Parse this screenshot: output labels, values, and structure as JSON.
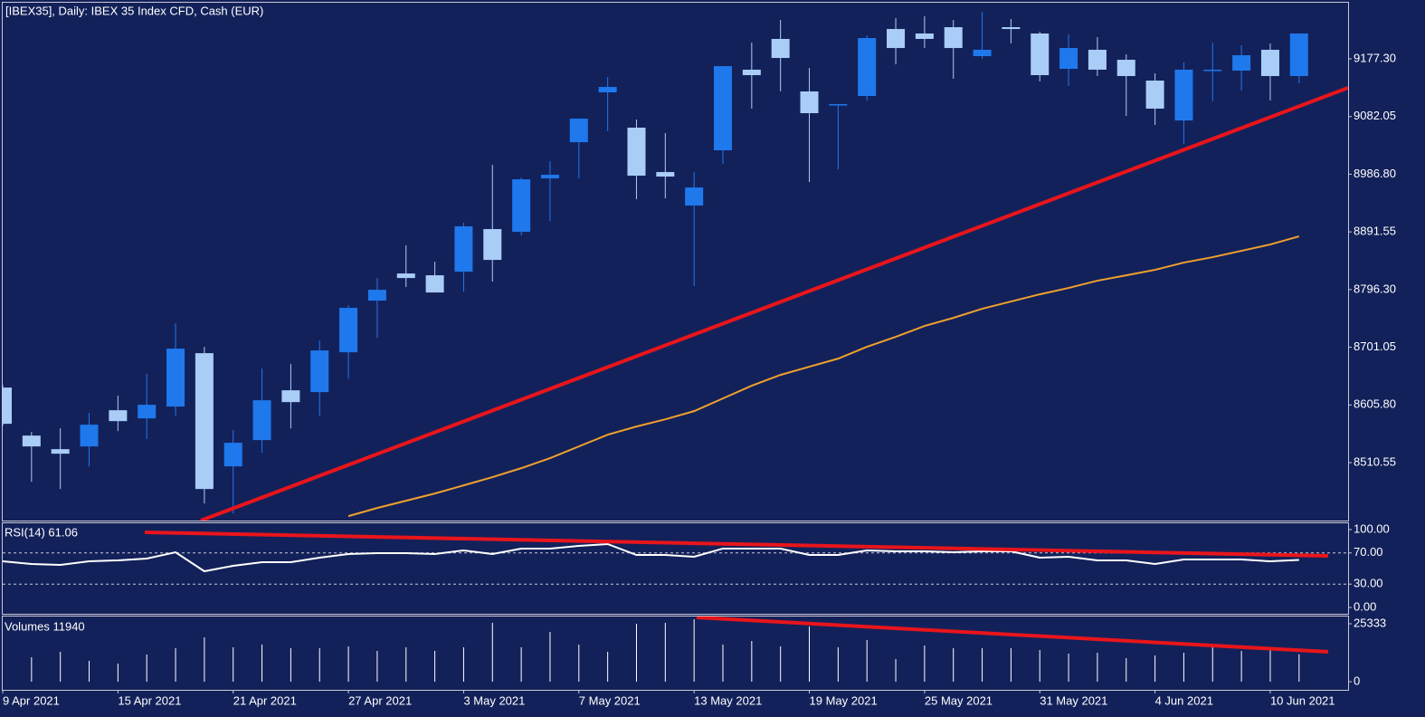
{
  "chart_data": [
    {
      "type": "candlestick",
      "title": "[IBEX35], Daily:  IBEX 35 Index CFD, Cash (EUR)",
      "up_color": "#1f78ec",
      "down_color": "#a9cdf6",
      "open": [
        8634.5,
        8555.2,
        8532.8,
        8537.3,
        8597.1,
        8583.6,
        8603.1,
        8691.3,
        8504.4,
        8547.8,
        8630.0,
        8627.0,
        8692.8,
        8778.1,
        8822.9,
        8819.9,
        8825.9,
        8896.2,
        8891.7,
        8979.9,
        9039.7,
        9122.0,
        9063.7,
        8990.4,
        8935.1,
        9026.3,
        9159.4,
        9210.2,
        9123.5,
        9101.0,
        9116.0,
        9226.6,
        9219.2,
        9229.6,
        9181.8,
        9229.6,
        9219.2,
        9160.8,
        9192.3,
        9175.8,
        9141.4,
        9075.6,
        9157.9,
        9157.9,
        9192.3,
        9148.9
      ],
      "high": [
        8639.0,
        8561.2,
        8567.2,
        8592.6,
        8621.0,
        8656.9,
        8740.7,
        8701.8,
        8564.2,
        8665.9,
        8673.4,
        8712.2,
        8770.6,
        8815.4,
        8869.3,
        8842.3,
        8906.6,
        9002.3,
        8981.4,
        9008.3,
        9078.6,
        9147.4,
        9077.1,
        9054.7,
        8990.4,
        9165.3,
        9204.2,
        9241.6,
        9162.3,
        9102.5,
        9216.2,
        9244.6,
        9247.6,
        9241.6,
        9255.1,
        9243.1,
        9222.2,
        9217.7,
        9213.2,
        9184.8,
        9153.4,
        9171.3,
        9204.2,
        9199.7,
        9202.7,
        9219.2
      ],
      "low": [
        8571.7,
        8479.0,
        8467.0,
        8504.4,
        8562.7,
        8549.3,
        8588.1,
        8443.1,
        8426.6,
        8526.8,
        8567.2,
        8588.1,
        8649.4,
        8716.7,
        8800.5,
        8791.5,
        8793.0,
        8809.5,
        8885.7,
        8909.6,
        8979.9,
        9057.7,
        8945.5,
        8947.0,
        8802.0,
        9003.8,
        9095.1,
        9123.5,
        8973.9,
        8994.9,
        9108.5,
        9168.3,
        9195.2,
        9144.4,
        9177.3,
        9202.7,
        9139.9,
        9132.4,
        9148.9,
        9083.1,
        9068.1,
        9036.7,
        9107.0,
        9125.0,
        9108.5,
        9136.9
      ],
      "close": [
        8574.7,
        8537.3,
        8525.3,
        8573.2,
        8579.1,
        8606.1,
        8698.8,
        8467.0,
        8543.3,
        8613.5,
        8610.5,
        8695.8,
        8766.1,
        8796.0,
        8815.4,
        8791.5,
        8900.7,
        8845.3,
        8978.4,
        8985.9,
        9078.6,
        9130.9,
        8984.4,
        8982.9,
        8964.9,
        9165.3,
        9150.4,
        9178.8,
        9087.6,
        9102.5,
        9211.7,
        9195.2,
        9210.2,
        9195.2,
        9192.3,
        9226.6,
        9150.4,
        9195.2,
        9159.4,
        9148.9,
        9095.1,
        9159.4,
        9159.4,
        9183.3,
        9148.9,
        9219.2
      ],
      "series": [
        {
          "color": "#f0a12c",
          "values": [
            null,
            null,
            null,
            null,
            null,
            null,
            null,
            null,
            null,
            null,
            null,
            null,
            8422.2,
            8435.6,
            8447.6,
            8459.6,
            8473.0,
            8486.5,
            8501.4,
            8517.9,
            8537.3,
            8556.7,
            8570.2,
            8582.1,
            8595.6,
            8616.5,
            8637.5,
            8655.4,
            8668.9,
            8682.3,
            8701.8,
            8718.2,
            8736.2,
            8749.6,
            8764.6,
            8776.6,
            8788.5,
            8799.0,
            8811.0,
            8819.9,
            8828.9,
            8840.9,
            8849.8,
            8860.3,
            8870.8,
            8884.2
          ]
        }
      ],
      "ylim": [
        8414.9,
        9270.0
      ],
      "yticks": [
        {
          "value": 9177.3,
          "label": "9177.30"
        },
        {
          "value": 9082.05,
          "label": "9082.05"
        },
        {
          "value": 8986.8,
          "label": "8986.80"
        },
        {
          "value": 8891.55,
          "label": "8891.55"
        },
        {
          "value": 8796.3,
          "label": "8796.30"
        },
        {
          "value": 8701.05,
          "label": "8701.05"
        },
        {
          "value": 8605.8,
          "label": "8605.80"
        },
        {
          "value": 8510.55,
          "label": "8510.55"
        }
      ]
    },
    {
      "type": "line",
      "title": "RSI(14) 61.06",
      "color": "#ffffff",
      "grid": true,
      "values": [
        59.3,
        55.8,
        54.7,
        59.3,
        60.5,
        62.8,
        70.9,
        46.5,
        53.5,
        58.1,
        58.1,
        64.0,
        68.6,
        69.8,
        69.8,
        68.6,
        73.3,
        68.6,
        75.6,
        75.6,
        79.1,
        81.4,
        67.4,
        67.4,
        65.1,
        75.6,
        75.6,
        75.6,
        67.4,
        67.4,
        73.3,
        72.1,
        72.1,
        70.9,
        72.1,
        72.1,
        64.0,
        65.1,
        60.5,
        60.5,
        55.8,
        61.6,
        61.6,
        61.6,
        59.3,
        61.06
      ],
      "ylim": [
        -8.1,
        108.1
      ],
      "yticks": [
        {
          "value": 100,
          "label": "100.00"
        },
        {
          "value": 70,
          "label": "70.00"
        },
        {
          "value": 30,
          "label": "30.00"
        },
        {
          "value": 0,
          "label": "0.00"
        }
      ]
    },
    {
      "type": "bar",
      "title": "Volumes 11940",
      "color": "#ffffff",
      "categories": [
        "9 Apr 2021",
        null,
        null,
        null,
        "15 Apr 2021",
        null,
        null,
        null,
        "21 Apr 2021",
        null,
        null,
        null,
        "27 Apr 2021",
        null,
        null,
        null,
        "3 May 2021",
        null,
        null,
        null,
        "7 May 2021",
        null,
        null,
        null,
        "13 May 2021",
        null,
        null,
        null,
        "19 May 2021",
        null,
        null,
        null,
        "25 May 2021",
        null,
        null,
        null,
        "31 May 2021",
        null,
        null,
        null,
        "4 Jun 2021",
        null,
        null,
        null,
        "10 Jun 2021",
        null
      ],
      "values": [
        null,
        10687,
        13061,
        9103,
        7916,
        11874,
        14645,
        19394,
        15040,
        16228,
        14645,
        14645,
        15436,
        13457,
        15040,
        13457,
        15040,
        25727,
        15040,
        21769,
        16228,
        13061,
        25333,
        25727,
        27310,
        16228,
        17811,
        15436,
        24144,
        15040,
        18207,
        9895,
        15832,
        14645,
        14645,
        14645,
        13853,
        12270,
        12666,
        10291,
        11478,
        12666,
        15832,
        13457,
        14249,
        11940
      ],
      "ylim": [
        -3562,
        28500
      ],
      "yticks": [
        25333,
        0
      ]
    }
  ]
}
